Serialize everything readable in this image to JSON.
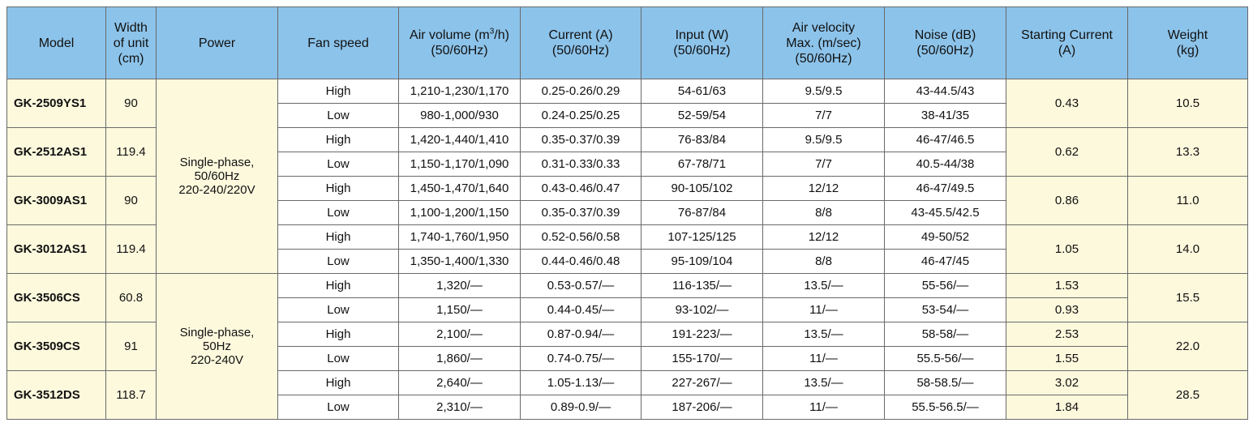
{
  "header": [
    [
      "Model"
    ],
    [
      "Width",
      "of unit",
      "(cm)"
    ],
    [
      "Power"
    ],
    [
      "Fan speed"
    ],
    [
      "Air volume (m",
      "3",
      "/h)",
      "(50/60Hz)"
    ],
    [
      "Current (A)",
      "(50/60Hz)"
    ],
    [
      "Input (W)",
      "(50/60Hz)"
    ],
    [
      "Air velocity",
      "Max. (m/sec)",
      "(50/60Hz)"
    ],
    [
      "Noise (dB)",
      "(50/60Hz)"
    ],
    [
      "Starting Current",
      "(A)"
    ],
    [
      "Weight",
      "(kg)"
    ]
  ],
  "groups": [
    {
      "power": [
        "Single-phase,",
        "50/60Hz",
        "220-240/220V"
      ],
      "models": [
        {
          "model": "GK-2509YS1",
          "width": "90",
          "starting": "0.43",
          "weight": "10.5",
          "rows": [
            [
              "High",
              "1,210-1,230/1,170",
              "0.25-0.26/0.29",
              "54-61/63",
              "9.5/9.5",
              "43-44.5/43"
            ],
            [
              "Low",
              "980-1,000/930",
              "0.24-0.25/0.25",
              "52-59/54",
              "7/7",
              "38-41/35"
            ]
          ]
        },
        {
          "model": "GK-2512AS1",
          "width": "119.4",
          "starting": "0.62",
          "weight": "13.3",
          "rows": [
            [
              "High",
              "1,420-1,440/1,410",
              "0.35-0.37/0.39",
              "76-83/84",
              "9.5/9.5",
              "46-47/46.5"
            ],
            [
              "Low",
              "1,150-1,170/1,090",
              "0.31-0.33/0.33",
              "67-78/71",
              "7/7",
              "40.5-44/38"
            ]
          ]
        },
        {
          "model": "GK-3009AS1",
          "width": "90",
          "starting": "0.86",
          "weight": "11.0",
          "rows": [
            [
              "High",
              "1,450-1,470/1,640",
              "0.43-0.46/0.47",
              "90-105/102",
              "12/12",
              "46-47/49.5"
            ],
            [
              "Low",
              "1,100-1,200/1,150",
              "0.35-0.37/0.39",
              "76-87/84",
              "8/8",
              "43-45.5/42.5"
            ]
          ]
        },
        {
          "model": "GK-3012AS1",
          "width": "119.4",
          "starting": "1.05",
          "weight": "14.0",
          "rows": [
            [
              "High",
              "1,740-1,760/1,950",
              "0.52-0.56/0.58",
              "107-125/125",
              "12/12",
              "49-50/52"
            ],
            [
              "Low",
              "1,350-1,400/1,330",
              "0.44-0.46/0.48",
              "95-109/104",
              "8/8",
              "46-47/45"
            ]
          ]
        }
      ]
    },
    {
      "power": [
        "Single-phase,",
        "50Hz",
        "220-240V"
      ],
      "models": [
        {
          "model": "GK-3506CS",
          "width": "60.8",
          "weight": "15.5",
          "rows": [
            [
              "High",
              "1,320/—",
              "0.53-0.57/—",
              "116-135/—",
              "13.5/—",
              "55-56/—",
              "1.53"
            ],
            [
              "Low",
              "1,150/—",
              "0.44-0.45/—",
              "93-102/—",
              "11/—",
              "53-54/—",
              "0.93"
            ]
          ]
        },
        {
          "model": "GK-3509CS",
          "width": "91",
          "weight": "22.0",
          "rows": [
            [
              "High",
              "2,100/—",
              "0.87-0.94/—",
              "191-223/—",
              "13.5/—",
              "58-58/—",
              "2.53"
            ],
            [
              "Low",
              "1,860/—",
              "0.74-0.75/—",
              "155-170/—",
              "11/—",
              "55.5-56/—",
              "1.55"
            ]
          ]
        },
        {
          "model": "GK-3512DS",
          "width": "118.7",
          "weight": "28.5",
          "rows": [
            [
              "High",
              "2,640/—",
              "1.05-1.13/—",
              "227-267/—",
              "13.5/—",
              "58-58.5/—",
              "3.02"
            ],
            [
              "Low",
              "2,310/—",
              "0.89-0.9/—",
              "187-206/—",
              "11/—",
              "55.5-56.5/—",
              "1.84"
            ]
          ]
        }
      ]
    }
  ]
}
